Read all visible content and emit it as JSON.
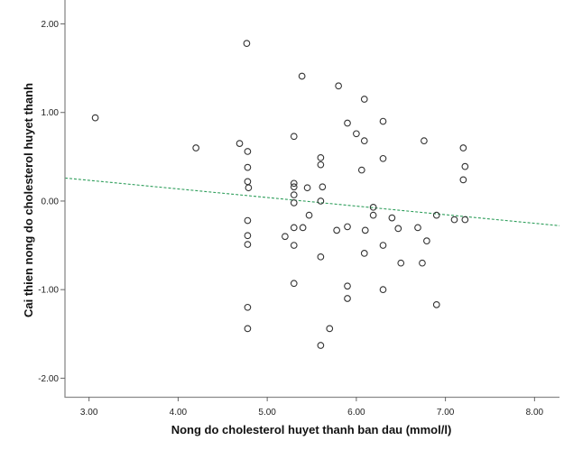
{
  "chart_data": {
    "type": "scatter",
    "title": "",
    "xlabel": "Nong do cholesterol huyet thanh ban dau (mmol/l)",
    "ylabel": "Cai thien nong do cholesterol huyet thanh",
    "xlim": [
      2.73,
      8.28
    ],
    "ylim": [
      -2.21,
      2.27
    ],
    "grid": false,
    "xticks": [
      "3.00",
      "4.00",
      "5.00",
      "6.00",
      "7.00",
      "8.00"
    ],
    "xtick_values": [
      3,
      4,
      5,
      6,
      7,
      8
    ],
    "yticks": [
      "2.00",
      "1.00",
      "0.00",
      "-1.00",
      "-2.00"
    ],
    "ytick_values": [
      2,
      1,
      0,
      -1,
      -2
    ],
    "fit_line": {
      "intercept": 0.525,
      "slope": -0.097,
      "color": "#2e9e5b",
      "style": "dashed"
    },
    "marker_color": "#333333",
    "points": [
      [
        3.07,
        0.94
      ],
      [
        4.2,
        0.6
      ],
      [
        4.69,
        0.65
      ],
      [
        4.78,
        0.56
      ],
      [
        4.78,
        0.38
      ],
      [
        4.78,
        0.22
      ],
      [
        4.79,
        0.15
      ],
      [
        4.77,
        1.78
      ],
      [
        4.78,
        -0.22
      ],
      [
        4.78,
        -0.39
      ],
      [
        4.78,
        -0.49
      ],
      [
        4.78,
        -1.2
      ],
      [
        4.78,
        -1.44
      ],
      [
        5.2,
        -0.4
      ],
      [
        5.39,
        1.41
      ],
      [
        5.8,
        1.3
      ],
      [
        6.09,
        1.15
      ],
      [
        5.9,
        0.88
      ],
      [
        6.3,
        0.9
      ],
      [
        5.3,
        0.73
      ],
      [
        6.0,
        0.76
      ],
      [
        6.09,
        0.68
      ],
      [
        6.76,
        0.68
      ],
      [
        7.2,
        0.6
      ],
      [
        5.6,
        0.49
      ],
      [
        6.3,
        0.48
      ],
      [
        5.6,
        0.41
      ],
      [
        6.06,
        0.35
      ],
      [
        7.22,
        0.39
      ],
      [
        7.2,
        0.24
      ],
      [
        5.3,
        0.2
      ],
      [
        5.3,
        0.16
      ],
      [
        5.45,
        0.15
      ],
      [
        5.62,
        0.16
      ],
      [
        5.3,
        0.07
      ],
      [
        5.3,
        -0.02
      ],
      [
        5.6,
        0.0
      ],
      [
        6.19,
        -0.07
      ],
      [
        5.47,
        -0.16
      ],
      [
        6.19,
        -0.16
      ],
      [
        6.4,
        -0.19
      ],
      [
        6.9,
        -0.16
      ],
      [
        7.1,
        -0.21
      ],
      [
        7.22,
        -0.21
      ],
      [
        5.3,
        -0.3
      ],
      [
        5.4,
        -0.3
      ],
      [
        5.78,
        -0.33
      ],
      [
        5.9,
        -0.29
      ],
      [
        6.1,
        -0.33
      ],
      [
        6.47,
        -0.31
      ],
      [
        6.69,
        -0.3
      ],
      [
        6.79,
        -0.45
      ],
      [
        5.3,
        -0.5
      ],
      [
        6.3,
        -0.5
      ],
      [
        5.6,
        -0.63
      ],
      [
        6.09,
        -0.59
      ],
      [
        6.5,
        -0.7
      ],
      [
        6.74,
        -0.7
      ],
      [
        5.3,
        -0.93
      ],
      [
        5.9,
        -0.96
      ],
      [
        5.9,
        -1.1
      ],
      [
        6.3,
        -1.0
      ],
      [
        6.9,
        -1.17
      ],
      [
        5.7,
        -1.44
      ],
      [
        5.6,
        -1.63
      ]
    ]
  }
}
